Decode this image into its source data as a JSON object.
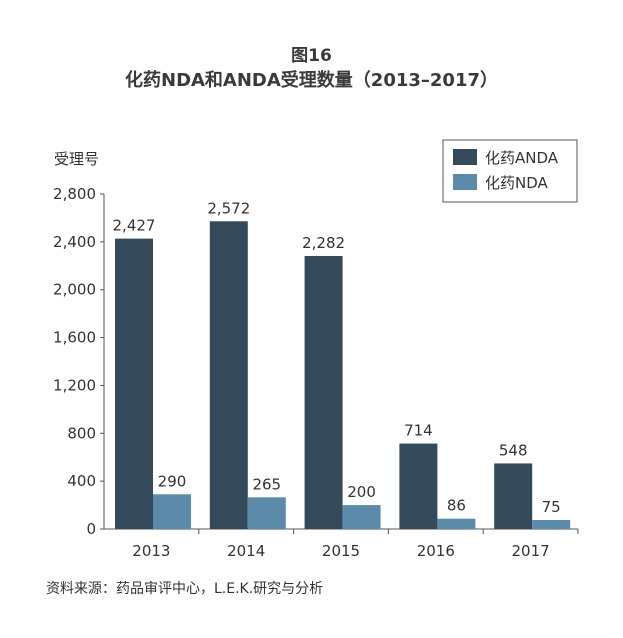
{
  "figure": {
    "number": "图16",
    "title": "化药NDA和ANDA受理数量（2013–2017）",
    "source": "资料来源：药品审评中心，L.E.K.研究与分析"
  },
  "chart_data": {
    "type": "bar",
    "ylabel": "受理号",
    "ylim": [
      0,
      2800
    ],
    "yticks": [
      0,
      400,
      800,
      1200,
      1600,
      2000,
      2400,
      2800
    ],
    "ytick_labels": [
      "0",
      "400",
      "800",
      "1,200",
      "1,600",
      "2,000",
      "2,400",
      "2,800"
    ],
    "categories": [
      "2013",
      "2014",
      "2015",
      "2016",
      "2017"
    ],
    "grid": false,
    "legend_position": "top-right",
    "series": [
      {
        "name": "化药ANDA",
        "color": "#344a5b",
        "values": [
          2427,
          2572,
          2282,
          714,
          548
        ],
        "labels": [
          "2,427",
          "2,572",
          "2,282",
          "714",
          "548"
        ]
      },
      {
        "name": "化药NDA",
        "color": "#5b8ba8",
        "values": [
          290,
          265,
          200,
          86,
          75
        ],
        "labels": [
          "290",
          "265",
          "200",
          "86",
          "75"
        ]
      }
    ]
  }
}
